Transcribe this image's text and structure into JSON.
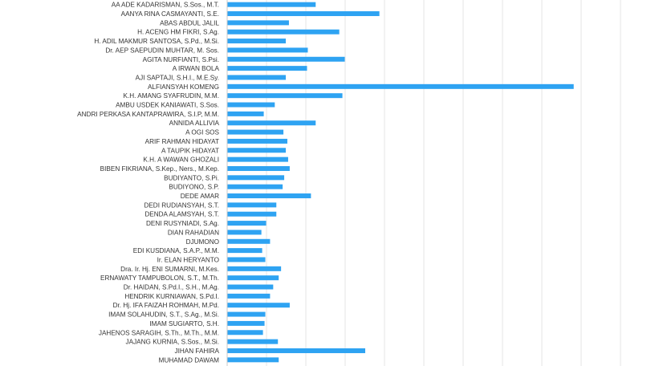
{
  "chart_data": {
    "type": "bar",
    "orientation": "horizontal",
    "categories": [
      "AA ADE KADARISMAN, S.Sos., M.T.",
      "AANYA RINA CASMAYANTI, S.E.",
      "ABAS ABDUL JALIL",
      "H. ACENG HM FIKRI, S.Ag.",
      "H. ADIL MAKMUR SANTOSA, S.Pd., M.Si.",
      "Dr. AEP SAEPUDIN MUHTAR, M. Sos.",
      "AGITA NURFIANTI, S.Psi.",
      "A IRWAN BOLA",
      "AJI SAPTAJI, S.H.I., M.E.Sy.",
      "ALFIANSYAH KOMENG",
      "K.H. AMANG SYAFRUDIN, M.M.",
      "AMBU USDEK KANIAWATI, S.Sos.",
      "ANDRI PERKASA KANTAPRAWIRA, S.I.P, M.M.",
      "ANNIDA ALLIVIA",
      "A OGI SOS",
      "ARIF RAHMAN HIDAYAT",
      "A TAUPIK HIDAYAT",
      "K.H. A WAWAN GHOZALI",
      "BIBEN FIKRIANA, S.Kep., Ners., M.Kep.",
      "BUDIYANTO, S.Pi.",
      "BUDIYONO, S.P.",
      "DEDE AMAR",
      "DEDI RUDIANSYAH, S.T.",
      "DENDA ALAMSYAH, S.T.",
      "DENI RUSYNIADI, S.Ag.",
      "DIAN RAHADIAN",
      "DJUMONO",
      "EDI KUSDIANA, S.A.P., M.M.",
      "Ir. ELAN HERYANTO",
      "Dra. Ir. Hj. ENI SUMARNI, M.Kes.",
      "ERNAWATY TAMPUBOLON, S.T., M.Th.",
      "Dr. HAIDAN, S.Pd.I., S.H., M.Ag.",
      "HENDRIK KURNIAWAN, S.Pd.I.",
      "Dr. Hj. IFA FAIZAH ROHMAH, M.Pd.",
      "IMAM SOLAHUDIN, S.T., S.Ag., M.Si.",
      "IMAM SUGIARTO, S.H.",
      "JAHENOS SARAGIH, S.Th., M.Th., M.M.",
      "JAJANG KURNIA, S.Sos., M.Si.",
      "JIHAN FAHIRA",
      "MUHAMAD DAWAM"
    ],
    "values": [
      112,
      193,
      78,
      142,
      74,
      102,
      149,
      101,
      74,
      440,
      146,
      60,
      46,
      112,
      71,
      76,
      74,
      77,
      79,
      72,
      70,
      106,
      62,
      62,
      49,
      43,
      54,
      44,
      48,
      68,
      65,
      58,
      54,
      79,
      48,
      47,
      45,
      64,
      175,
      65
    ],
    "xlim": [
      0,
      500
    ],
    "grid": true,
    "legend": "none",
    "bar_color": "#2ea3f2",
    "title": "",
    "xlabel": "",
    "ylabel": ""
  }
}
